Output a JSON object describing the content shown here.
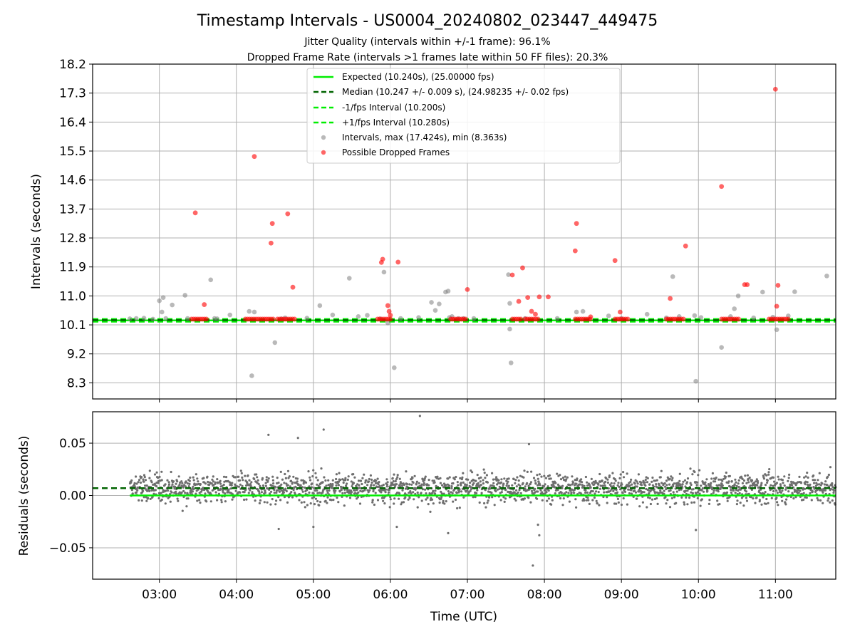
{
  "colors": {
    "expected": "#00ee00",
    "median": "#006400",
    "interval_band": "#00ee00",
    "points": "#808080",
    "dropped": "#ff0000",
    "grid": "#b0b0b0"
  },
  "chart_data": [
    {
      "type": "scatter",
      "title": "Timestamp Intervals - US0004_20240802_023447_449475",
      "subtitle_1": "Jitter Quality (intervals within +/-1 frame): 96.1%",
      "subtitle_2": "Dropped Frame Rate (intervals >1 frames late within 50 FF files): 20.3%",
      "xlabel": "",
      "ylabel": "Intervals (seconds)",
      "xlim": [
        "02:08",
        "11:47"
      ],
      "ylim": [
        7.8,
        18.2
      ],
      "yticks": [
        "8.3",
        "9.2",
        "10.1",
        "11.0",
        "11.9",
        "12.8",
        "13.7",
        "14.6",
        "15.5",
        "16.4",
        "17.3",
        "18.2"
      ],
      "grid": true,
      "legend_position": "top-center",
      "legend": [
        "Expected (10.240s), (25.00000 fps)",
        "Median (10.247 +/- 0.009 s), (24.98235 +/- 0.02 fps)",
        "-1/fps Interval (10.200s)",
        "+1/fps Interval (10.280s)",
        "Intervals, max (17.424s), min (8.363s)",
        "Possible Dropped Frames"
      ],
      "series": [
        {
          "name": "Expected (10.240s), (25.00000 fps)",
          "kind": "hline",
          "y": 10.24
        },
        {
          "name": "Median (10.247 +/- 0.009 s), (24.98235 +/- 0.02 fps)",
          "kind": "hline",
          "y": 10.247
        },
        {
          "name": "-1/fps Interval (10.200s)",
          "kind": "hline",
          "y": 10.2
        },
        {
          "name": "+1/fps Interval (10.280s)",
          "kind": "hline",
          "y": 10.28
        },
        {
          "name": "Intervals, max (17.424s), min (8.363s)",
          "kind": "points",
          "x": [
            "02:37",
            "02:42",
            "02:48",
            "02:55",
            "03:00",
            "03:02",
            "03:03",
            "03:05",
            "03:10",
            "03:20",
            "03:22",
            "03:40",
            "03:43",
            "03:45",
            "03:55",
            "04:10",
            "04:12",
            "04:14",
            "04:30",
            "04:35",
            "04:38",
            "04:55",
            "05:05",
            "05:15",
            "05:28",
            "05:35",
            "05:42",
            "05:52",
            "05:55",
            "05:58",
            "06:03",
            "06:08",
            "06:22",
            "06:32",
            "06:35",
            "06:38",
            "06:43",
            "06:45",
            "06:46",
            "06:48",
            "06:53",
            "06:57",
            "07:05",
            "07:32",
            "07:33",
            "07:33",
            "07:34",
            "07:45",
            "08:10",
            "08:25",
            "08:30",
            "08:50",
            "09:00",
            "09:20",
            "09:35",
            "09:40",
            "09:45",
            "09:57",
            "09:58",
            "10:02",
            "10:18",
            "10:25",
            "10:28",
            "10:31",
            "10:43",
            "10:50",
            "10:58",
            "11:01",
            "11:10",
            "11:15",
            "11:40"
          ],
          "y": [
            10.29,
            10.3,
            10.31,
            10.28,
            10.85,
            10.5,
            10.95,
            10.3,
            10.72,
            11.02,
            10.3,
            11.5,
            10.3,
            10.29,
            10.41,
            10.52,
            8.52,
            10.5,
            9.55,
            10.29,
            10.32,
            10.31,
            10.7,
            10.41,
            11.55,
            10.36,
            10.4,
            10.29,
            11.74,
            10.16,
            8.77,
            10.3,
            10.33,
            10.8,
            10.55,
            10.75,
            11.12,
            11.15,
            10.33,
            10.36,
            10.3,
            10.3,
            10.3,
            11.66,
            10.77,
            9.97,
            8.92,
            10.3,
            10.3,
            10.5,
            10.52,
            10.38,
            10.3,
            10.43,
            10.32,
            11.6,
            10.36,
            10.39,
            8.35,
            10.33,
            9.4,
            10.36,
            10.6,
            11.0,
            10.32,
            11.12,
            10.34,
            9.95,
            10.38,
            11.13,
            11.62
          ]
        },
        {
          "name": "Possible Dropped Frames",
          "kind": "points",
          "x": [
            "03:28",
            "03:35",
            "04:14",
            "04:27",
            "04:28",
            "04:40",
            "04:44",
            "05:53",
            "05:54",
            "05:58",
            "05:59",
            "06:00",
            "06:06",
            "07:00",
            "07:35",
            "07:40",
            "07:43",
            "07:47",
            "07:50",
            "07:53",
            "07:56",
            "08:03",
            "08:24",
            "08:25",
            "08:36",
            "08:55",
            "08:59",
            "09:38",
            "09:50",
            "10:18",
            "10:36",
            "10:38",
            "11:00",
            "11:01",
            "11:02"
          ],
          "y": [
            13.58,
            10.73,
            15.33,
            12.64,
            13.25,
            13.55,
            11.27,
            12.04,
            12.14,
            10.7,
            10.52,
            10.4,
            12.05,
            11.2,
            11.65,
            10.83,
            11.87,
            10.95,
            10.52,
            10.43,
            10.97,
            10.97,
            12.4,
            13.25,
            10.35,
            12.1,
            10.5,
            10.92,
            12.55,
            14.4,
            11.35,
            11.35,
            17.42,
            10.68,
            11.33
          ]
        },
        {
          "name": "Possible Dropped Frames",
          "kind": "cluster",
          "x_start": [
            "03:25",
            "04:07",
            "04:32",
            "05:50",
            "06:47",
            "07:35",
            "07:45",
            "08:24",
            "08:55",
            "09:35",
            "10:18",
            "10:55"
          ],
          "x_end": [
            "03:37",
            "04:30",
            "04:46",
            "06:00",
            "07:00",
            "07:43",
            "07:56",
            "08:36",
            "09:05",
            "09:49",
            "10:32",
            "11:10"
          ],
          "y": 10.28
        }
      ]
    },
    {
      "type": "scatter",
      "xlabel": "Time (UTC)",
      "ylabel": "Residuals (seconds)",
      "xlim": [
        "02:08",
        "11:47"
      ],
      "ylim": [
        -0.08,
        0.08
      ],
      "yticks": [
        "−0.05",
        "0.00",
        "0.05"
      ],
      "xticks": [
        "03:00",
        "04:00",
        "05:00",
        "06:00",
        "07:00",
        "08:00",
        "09:00",
        "10:00",
        "11:00"
      ],
      "grid": true,
      "series": [
        {
          "kind": "hline",
          "y": 0.0
        },
        {
          "kind": "hline",
          "y": 0.007
        },
        {
          "kind": "points",
          "x_range": [
            "02:37",
            "11:47"
          ],
          "y_center": 0.007,
          "y_spread": 0.01,
          "outliers_x": [
            "06:23",
            "05:08",
            "04:25",
            "04:48",
            "07:48",
            "07:51",
            "07:56",
            "05:00",
            "06:05",
            "06:45",
            "07:55",
            "09:58",
            "04:33"
          ],
          "outliers_y": [
            0.076,
            0.063,
            0.058,
            0.055,
            0.049,
            -0.067,
            -0.038,
            -0.03,
            -0.03,
            -0.036,
            -0.028,
            -0.033,
            -0.032
          ]
        }
      ]
    }
  ]
}
